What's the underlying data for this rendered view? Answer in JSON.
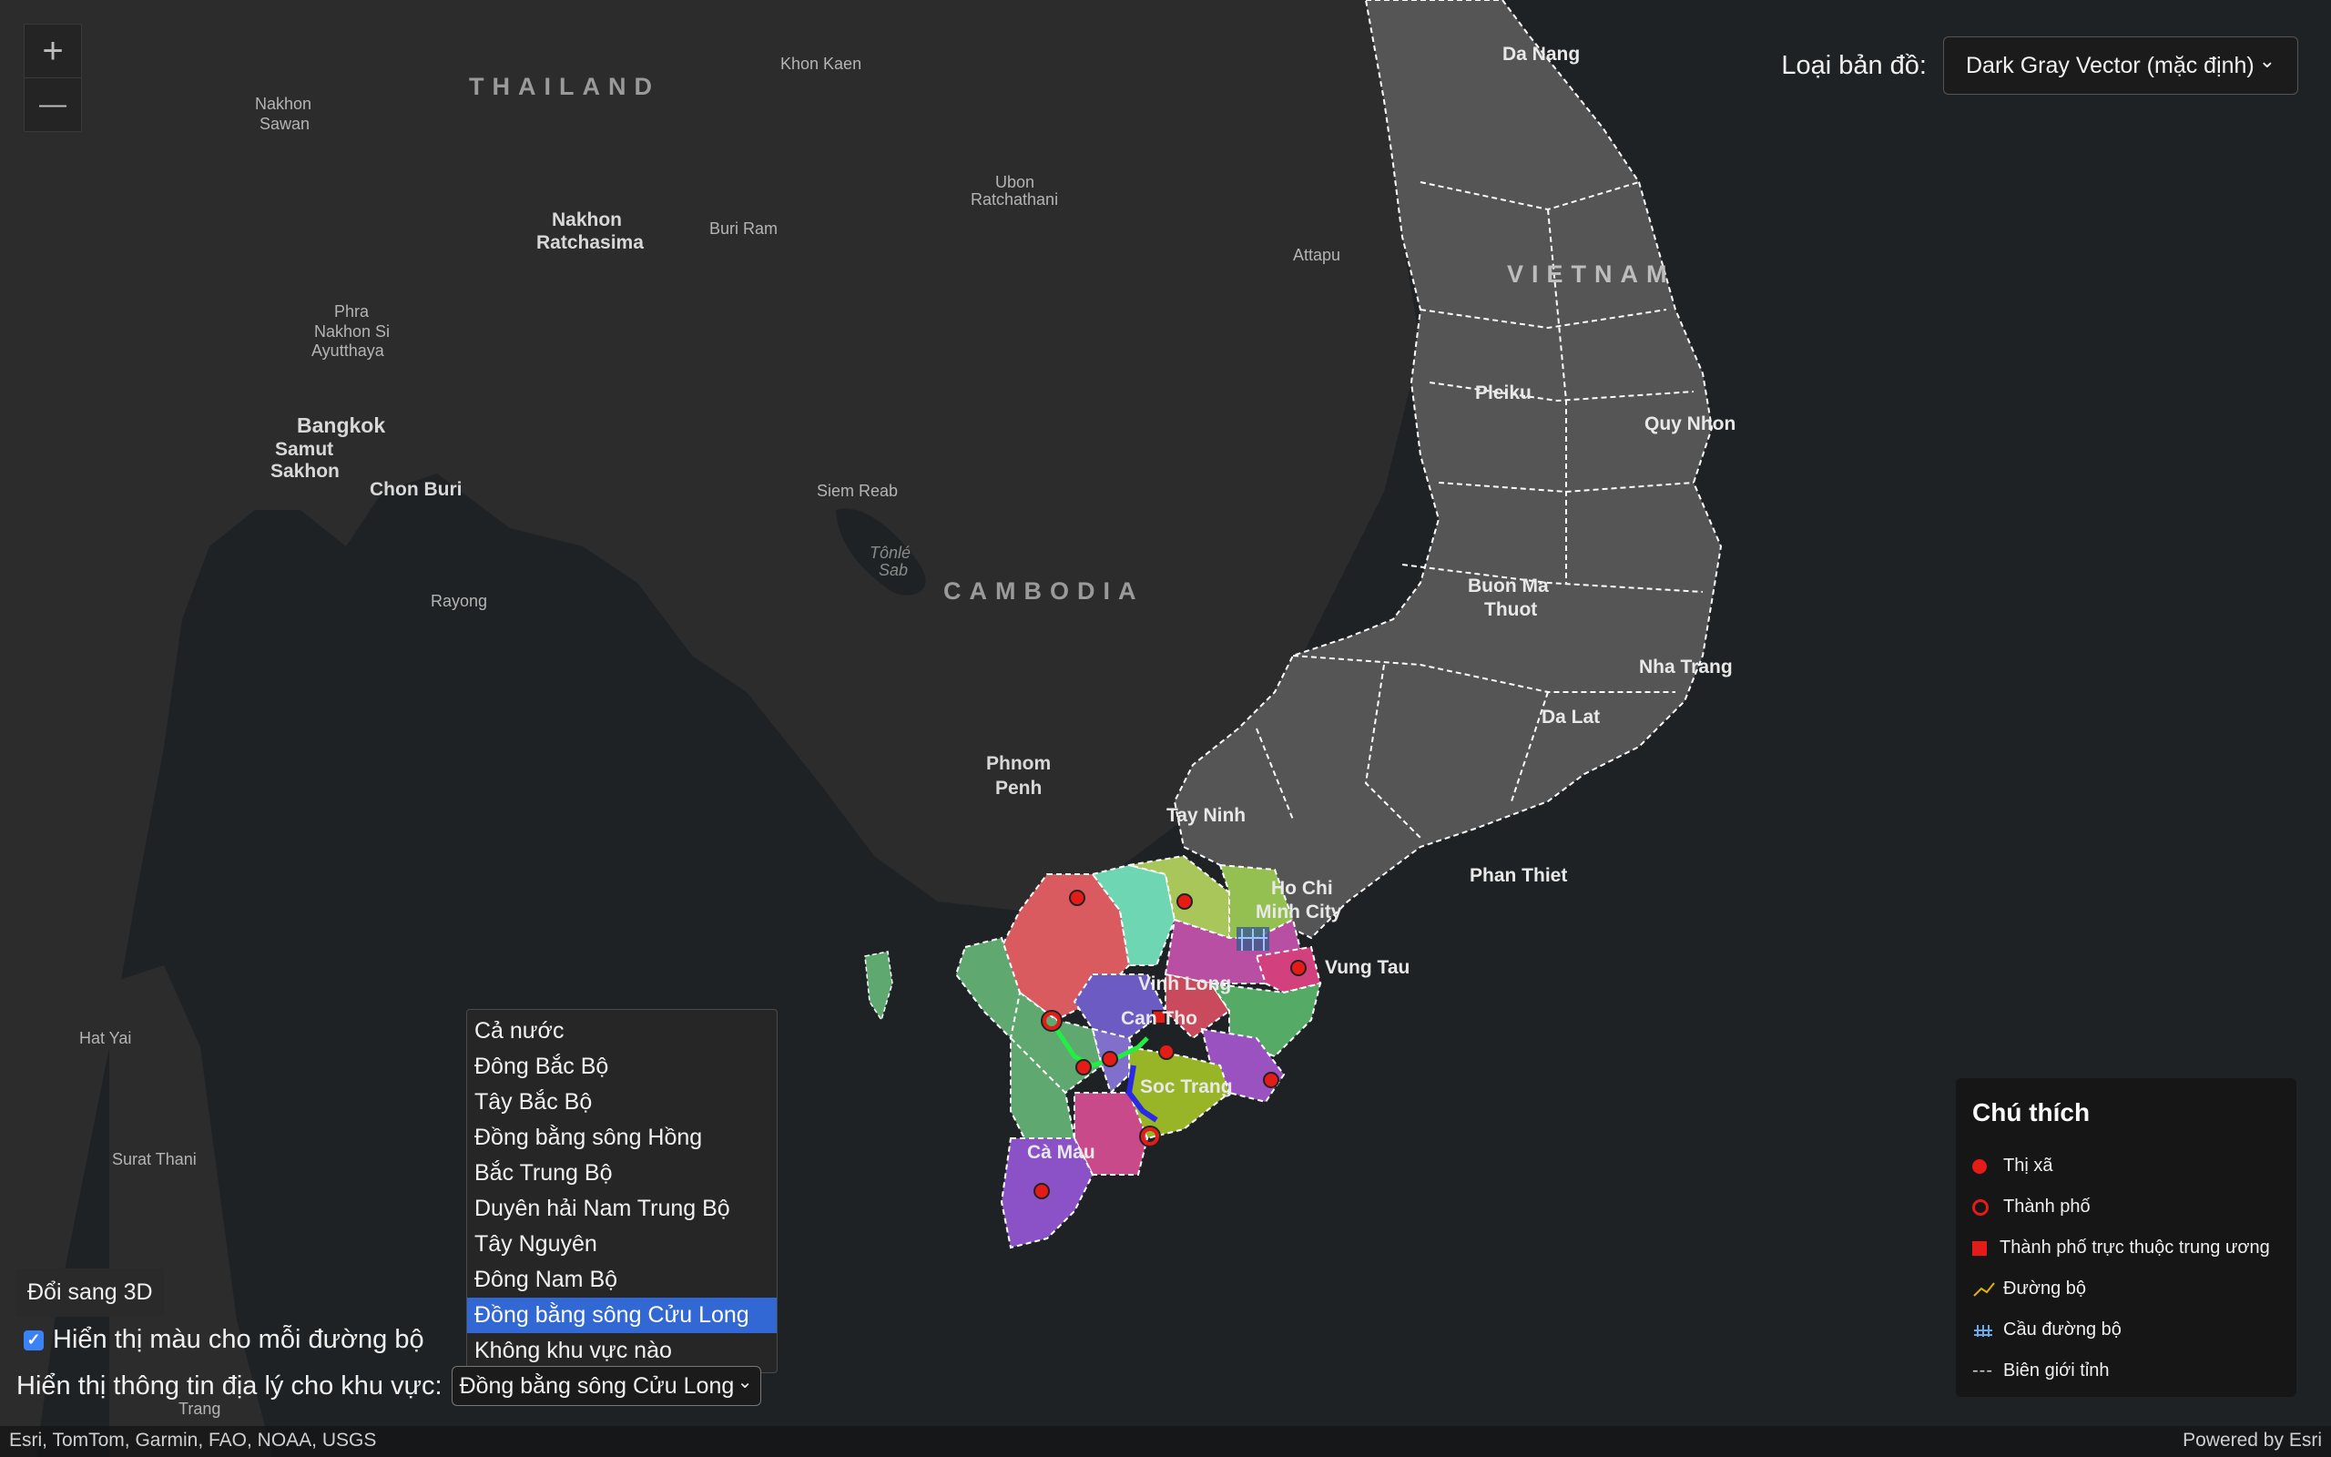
{
  "zoom": {
    "in_label": "+",
    "out_label": "—"
  },
  "basemap": {
    "label": "Loại bản đồ:",
    "selected": "Dark Gray Vector (mặc định)",
    "chevron": "⌄"
  },
  "map_labels": {
    "thailand": "THAILAND",
    "cambodia": "CAMBODIA",
    "vietnam": "VIETNAM",
    "khon_kaen": "Khon Kaen",
    "nakhon_sawan_1": "Nakhon",
    "nakhon_sawan_2": "Sawan",
    "ubon_1": "Ubon",
    "ubon_2": "Ratchathani",
    "nakhon_ratchasima_1": "Nakhon",
    "nakhon_ratchasima_2": "Ratchasima",
    "buri_ram": "Buri Ram",
    "attapu": "Attapu",
    "phra_1": "Phra",
    "phra_2": "Nakhon Si",
    "phra_3": "Ayutthaya",
    "bangkok": "Bangkok",
    "samut_1": "Samut",
    "samut_2": "Sakhon",
    "chon_buri": "Chon Buri",
    "siem_reab": "Siem Reab",
    "tonle_1": "Tônlé",
    "tonle_2": "Sab",
    "rayong": "Rayong",
    "phnom_1": "Phnom",
    "phnom_2": "Penh",
    "hat_yai": "Hat Yai",
    "surat_thani": "Surat Thani",
    "trang": "Trang",
    "da_nang": "Da Nang",
    "pleiku": "Pleiku",
    "quy_nhon": "Quy Nhon",
    "buon_ma_1": "Buon Ma",
    "buon_ma_2": "Thuot",
    "nha_trang": "Nha Trang",
    "da_lat": "Da Lat",
    "tay_ninh": "Tay Ninh",
    "hcm_1": "Ho Chi",
    "hcm_2": "Minh City",
    "phan_thiet": "Phan Thiet",
    "vung_tau": "Vung Tau",
    "vinh_long": "Vinh Long",
    "can_tho": "Can Tho",
    "soc_trang": "Soc Trang",
    "ca_mau": "Cà Mau"
  },
  "controls": {
    "toggle_3d": "Đổi sang 3D",
    "show_road_colors": "Hiển thị màu cho mỗi đường bộ",
    "checkbox_mark": "✓",
    "region_label": "Hiển thị thông tin địa lý cho khu vực:",
    "region_selected": "Đồng bằng sông Cửu Long",
    "chevron": "⌄",
    "region_options": [
      "Cả nước",
      "Đông Bắc Bộ",
      "Tây Bắc Bộ",
      "Đồng bằng sông Hồng",
      "Bắc Trung Bộ",
      "Duyên hải Nam Trung Bộ",
      "Tây Nguyên",
      "Đông Nam Bộ",
      "Đồng bằng sông Cửu Long",
      "Không khu vực nào"
    ]
  },
  "legend": {
    "title": "Chú thích",
    "items": [
      {
        "label": "Thị xã"
      },
      {
        "label": "Thành phố"
      },
      {
        "label": "Thành phố trực thuộc trung ương"
      },
      {
        "label": "Đường bộ"
      },
      {
        "label": "Cầu đường bộ"
      },
      {
        "label": "Biên giới tỉnh",
        "glyph": "---"
      }
    ]
  },
  "attribution": {
    "left": "Esri, TomTom, Garmin, FAO, NOAA, USGS",
    "right": "Powered by Esri"
  },
  "colors": {
    "accent": "#3268d4",
    "marker": "#e41b17"
  }
}
